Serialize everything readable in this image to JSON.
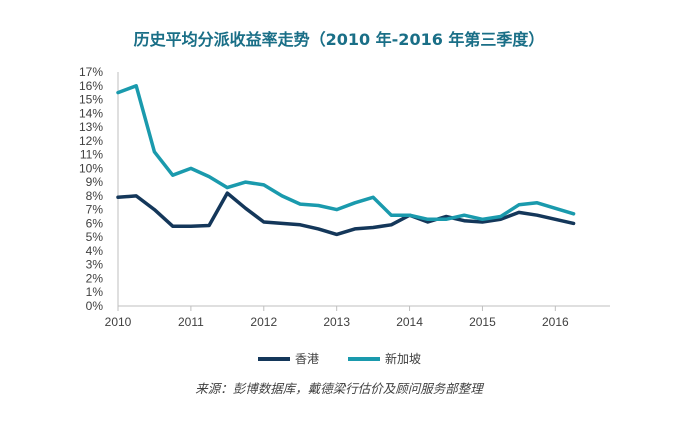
{
  "chart_data": {
    "type": "line",
    "title": "历史平均分派收益率走势（2010 年-2016 年第三季度）",
    "xlabel": "",
    "ylabel": "",
    "x_ticks": [
      "2010",
      "2011",
      "2012",
      "2013",
      "2014",
      "2015",
      "2016"
    ],
    "x_range": [
      2010,
      2016.75
    ],
    "ylim": [
      0,
      17
    ],
    "y_ticks": [
      "0%",
      "1%",
      "2%",
      "3%",
      "4%",
      "5%",
      "6%",
      "7%",
      "8%",
      "9%",
      "10%",
      "11%",
      "12%",
      "13%",
      "14%",
      "15%",
      "16%",
      "17%"
    ],
    "grid": false,
    "legend_position": "bottom",
    "x": [
      2010.0,
      2010.25,
      2010.5,
      2010.75,
      2011.0,
      2011.25,
      2011.5,
      2011.75,
      2012.0,
      2012.25,
      2012.5,
      2012.75,
      2013.0,
      2013.25,
      2013.5,
      2013.75,
      2014.0,
      2014.25,
      2014.5,
      2014.75,
      2015.0,
      2015.25,
      2015.5,
      2015.75,
      2016.0,
      2016.25,
      2016.5
    ],
    "series": [
      {
        "name": "香港",
        "color": "#14375a",
        "values": [
          7.9,
          8.0,
          7.0,
          5.8,
          5.8,
          5.85,
          8.2,
          7.1,
          6.1,
          6.0,
          5.9,
          5.6,
          5.2,
          5.6,
          5.7,
          5.9,
          6.6,
          6.1,
          6.5,
          6.2,
          6.1,
          6.3,
          6.8,
          6.6,
          6.3,
          6.0,
          null
        ]
      },
      {
        "name": "新加坡",
        "color": "#1a9aad",
        "values": [
          15.5,
          16.0,
          11.2,
          9.5,
          10.0,
          9.4,
          8.6,
          9.0,
          8.8,
          8.0,
          7.4,
          7.3,
          7.0,
          7.5,
          7.9,
          6.6,
          6.6,
          6.3,
          6.3,
          6.6,
          6.3,
          6.5,
          7.35,
          7.5,
          7.1,
          6.7,
          null
        ]
      }
    ]
  },
  "source": "来源：彭博数据库，戴德梁行估价及顾问服务部整理"
}
